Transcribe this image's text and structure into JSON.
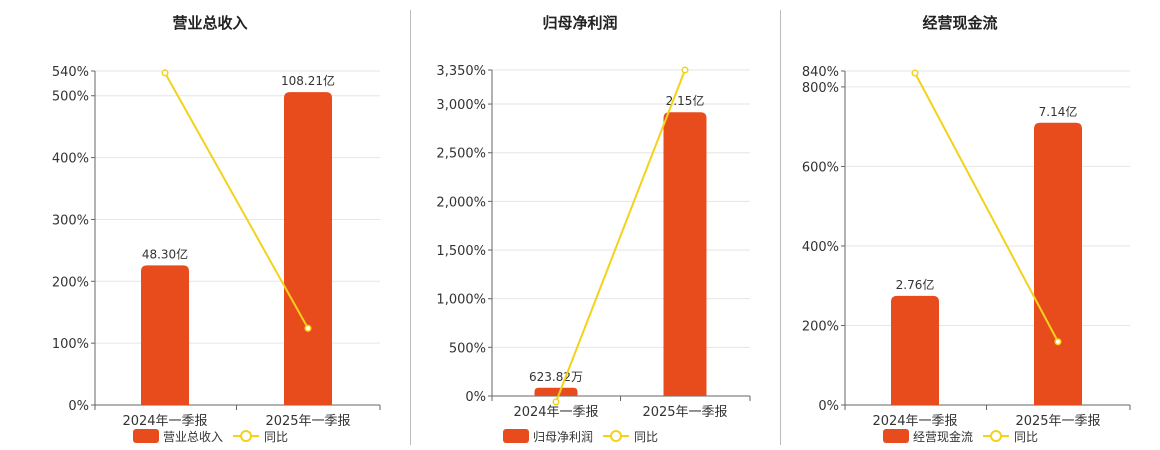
{
  "chart_data": [
    {
      "type": "bar",
      "title": "营业总收入",
      "categories": [
        "2024年一季报",
        "2025年一季报"
      ],
      "series": [
        {
          "name": "营业总收入",
          "type": "bar",
          "values": [
            48.3,
            108.21
          ],
          "labels": [
            "48.30亿",
            "108.21亿"
          ],
          "color": "#e84c1c"
        },
        {
          "name": "同比",
          "type": "line",
          "axis": "y",
          "values": [
            537,
            124
          ],
          "color": "#f2d21b"
        }
      ],
      "bar_max": 115.5,
      "ylim": [
        0,
        540
      ],
      "yticks": [
        0,
        100,
        200,
        300,
        400,
        500,
        540
      ],
      "ytick_labels": [
        "0%",
        "100%",
        "200%",
        "300%",
        "400%",
        "500%",
        "540%"
      ],
      "legend": "bottom",
      "grid": true
    },
    {
      "type": "bar",
      "title": "归母净利润",
      "categories": [
        "2024年一季报",
        "2025年一季报"
      ],
      "series": [
        {
          "name": "归母净利润",
          "type": "bar",
          "values": [
            0.0623,
            2.15
          ],
          "labels": [
            "623.82万",
            "2.15亿"
          ],
          "color": "#e84c1c"
        },
        {
          "name": "同比",
          "type": "line",
          "axis": "y",
          "values": [
            -60,
            3350
          ],
          "color": "#f2d21b"
        }
      ],
      "bar_max": 2.47,
      "ylim": [
        0,
        3350
      ],
      "yticks": [
        0,
        500,
        1000,
        1500,
        2000,
        2500,
        3000,
        3350
      ],
      "ytick_labels": [
        "0%",
        "500%",
        "1,000%",
        "1,500%",
        "2,000%",
        "2,500%",
        "3,000%",
        "3,350%"
      ],
      "legend": "bottom",
      "grid": true
    },
    {
      "type": "bar",
      "title": "经营现金流",
      "categories": [
        "2024年一季报",
        "2025年一季报"
      ],
      "series": [
        {
          "name": "经营现金流",
          "type": "bar",
          "values": [
            2.76,
            7.14
          ],
          "labels": [
            "2.76亿",
            "7.14亿"
          ],
          "color": "#e84c1c"
        },
        {
          "name": "同比",
          "type": "line",
          "axis": "y",
          "values": [
            835,
            159
          ],
          "color": "#f2d21b"
        }
      ],
      "bar_max": 8.45,
      "ylim": [
        0,
        840
      ],
      "yticks": [
        0,
        200,
        400,
        600,
        800,
        840
      ],
      "ytick_labels": [
        "0%",
        "200%",
        "400%",
        "600%",
        "800%",
        "840%"
      ],
      "legend": "bottom",
      "grid": true
    }
  ]
}
